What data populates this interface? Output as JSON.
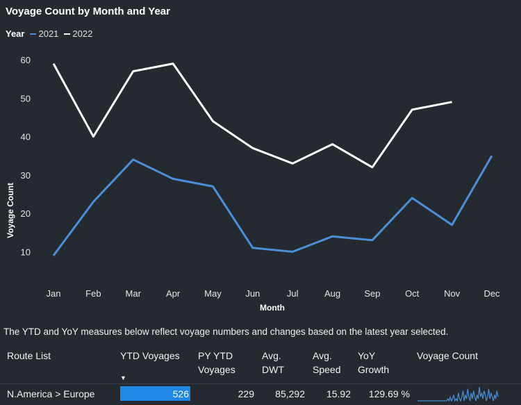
{
  "chart_data": {
    "type": "line",
    "title": "Voyage Count by Month and Year",
    "xlabel": "Month",
    "ylabel": "Voyage Count",
    "categories": [
      "Jan",
      "Feb",
      "Mar",
      "Apr",
      "May",
      "Jun",
      "Jul",
      "Aug",
      "Sep",
      "Oct",
      "Nov",
      "Dec"
    ],
    "y_ticks": [
      10,
      20,
      30,
      40,
      50,
      60
    ],
    "ylim": [
      5,
      62
    ],
    "grid": false,
    "legend": {
      "title": "Year",
      "position": "top-left"
    },
    "series": [
      {
        "name": "2021",
        "color": "#4a8fd9",
        "values": [
          9,
          23,
          34,
          29,
          27,
          11,
          10,
          14,
          13,
          24,
          17,
          35
        ]
      },
      {
        "name": "2022",
        "color": "#ffffff",
        "values": [
          59,
          40,
          57,
          59,
          44,
          37,
          33,
          38,
          32,
          47,
          49,
          null
        ]
      }
    ]
  },
  "caption": "The YTD and YoY measures below reflect voyage numbers and changes based on the latest year selected.",
  "table": {
    "headers": {
      "route": "Route List",
      "ytd": "YTD Voyages",
      "py_ytd_1": "PY YTD",
      "py_ytd_2": "Voyages",
      "dwt_1": "Avg.",
      "dwt_2": "DWT",
      "speed_1": "Avg.",
      "speed_2": "Speed",
      "yoy_1": "YoY",
      "yoy_2": "Growth",
      "spark": "Voyage Count"
    },
    "sort_indicator": "▼",
    "rows": [
      {
        "route": "N.America > Europe",
        "ytd": "526",
        "ytd_fill": 1.0,
        "py_ytd": "229",
        "dwt": "85,292",
        "speed": "15.92",
        "yoy": "129.69 %",
        "sparkline": [
          1,
          1,
          1,
          1,
          1,
          1,
          1,
          1,
          1,
          1,
          1,
          1,
          1,
          1,
          1,
          1,
          1,
          1,
          1,
          1,
          1,
          1,
          1,
          1,
          1,
          1,
          2,
          1,
          3,
          1,
          2,
          4,
          1,
          2,
          1,
          5,
          2,
          1,
          3,
          6,
          1,
          4,
          2,
          7,
          3,
          1,
          5,
          2,
          6,
          3,
          1,
          4,
          2,
          8,
          3,
          5,
          2,
          6,
          4,
          1,
          3,
          7,
          2,
          5,
          3,
          1,
          4,
          2,
          6,
          3
        ]
      }
    ]
  }
}
